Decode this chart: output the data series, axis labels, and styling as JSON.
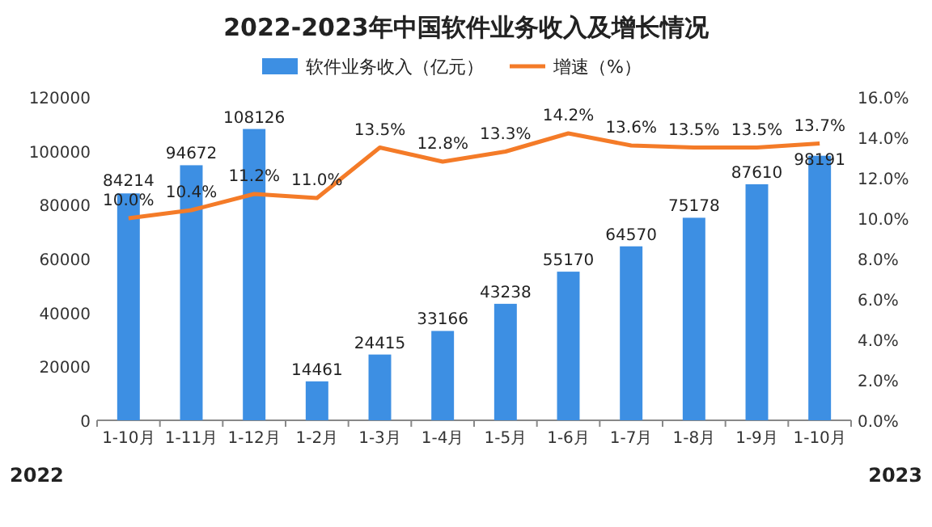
{
  "chart_data": {
    "type": "bar",
    "title": "2022-2023年中国软件业务收入及增长情况",
    "categories": [
      "1-10月",
      "1-11月",
      "1-12月",
      "1-2月",
      "1-3月",
      "1-4月",
      "1-5月",
      "1-6月",
      "1-7月",
      "1-8月",
      "1-9月",
      "1-10月"
    ],
    "series": [
      {
        "name": "软件业务收入（亿元）",
        "type": "bar",
        "color": "#3d8fe3",
        "values": [
          84214,
          94672,
          108126,
          14461,
          24415,
          33166,
          43238,
          55170,
          64570,
          75178,
          87610,
          98191
        ],
        "value_labels": [
          "84214",
          "94672",
          "108126",
          "14461",
          "24415",
          "33166",
          "43238",
          "55170",
          "64570",
          "75178",
          "87610",
          "98191"
        ]
      },
      {
        "name": "增速（%）",
        "type": "line",
        "axis": "y2",
        "color": "#f47b28",
        "values": [
          10.0,
          10.4,
          11.2,
          11.0,
          13.5,
          12.8,
          13.3,
          14.2,
          13.6,
          13.5,
          13.5,
          13.7
        ],
        "value_labels": [
          "10.0%",
          "10.4%",
          "11.2%",
          "11.0%",
          "13.5%",
          "12.8%",
          "13.3%",
          "14.2%",
          "13.6%",
          "13.5%",
          "13.5%",
          "13.7%"
        ]
      }
    ],
    "ylim": [
      0,
      120000
    ],
    "yticks": [
      0,
      20000,
      40000,
      60000,
      80000,
      100000,
      120000
    ],
    "y2lim": [
      0,
      16
    ],
    "y2ticks": [
      {
        "value": 0,
        "label": "0.0%"
      },
      {
        "value": 2,
        "label": "2.0%"
      },
      {
        "value": 4,
        "label": "4.0%"
      },
      {
        "value": 6,
        "label": "6.0%"
      },
      {
        "value": 8,
        "label": "8.0%"
      },
      {
        "value": 10,
        "label": "10.0%"
      },
      {
        "value": 12,
        "label": "12.0%"
      },
      {
        "value": 14,
        "label": "14.0%"
      },
      {
        "value": 16,
        "label": "16.0%"
      }
    ],
    "legend": "top",
    "grid": false,
    "annotations": [
      "2022",
      "2023"
    ]
  }
}
